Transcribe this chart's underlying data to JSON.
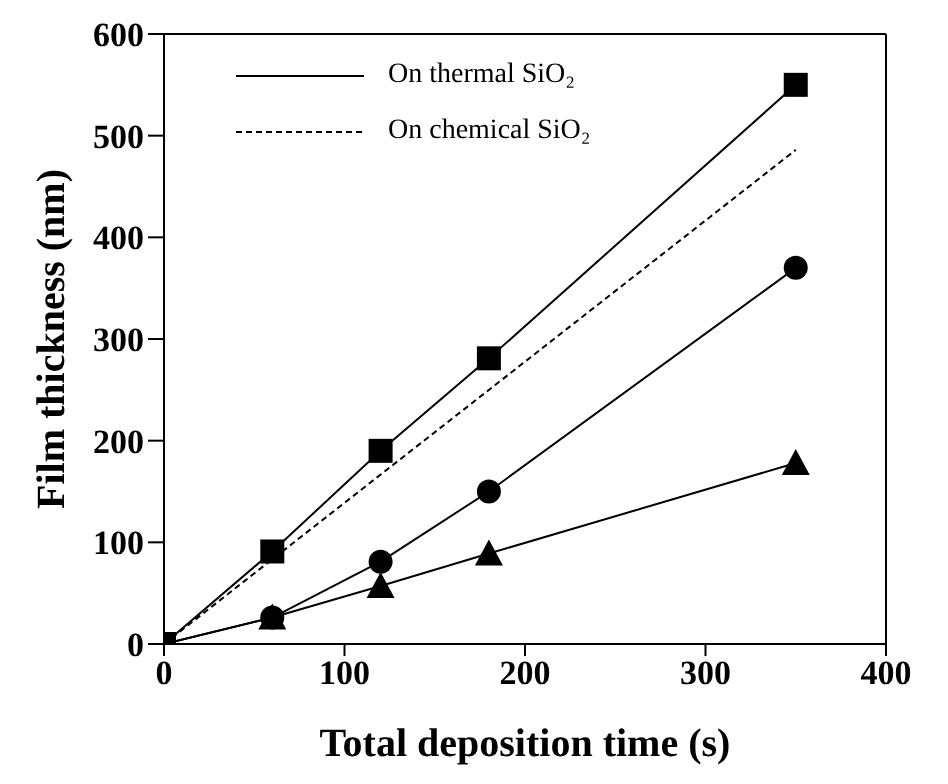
{
  "chart_data": {
    "type": "line",
    "xlabel": "Total deposition time (s)",
    "ylabel": "Film thickness (nm)",
    "xlim": [
      0,
      400
    ],
    "xticks": [
      0,
      100,
      200,
      300,
      400
    ],
    "ylim": [
      0,
      600
    ],
    "yticks": [
      0,
      100,
      200,
      300,
      400,
      500,
      600
    ],
    "legend": "top left",
    "series": [
      {
        "name": "On thermal SiO₂",
        "color": "#000000",
        "marker": "square",
        "line_style": "solid",
        "x": [
          0,
          60,
          120,
          180,
          350
        ],
        "values": [
          0,
          91,
          190,
          281,
          550
        ]
      },
      {
        "color": "#000000",
        "marker": "circle",
        "line_style": "solid",
        "x": [
          0,
          60,
          120,
          180,
          350
        ],
        "values": [
          0,
          26,
          81,
          150,
          370
        ]
      },
      {
        "color": "#000000",
        "marker": "triangle",
        "line_style": "solid",
        "x": [
          0,
          60,
          120,
          180,
          350
        ],
        "values": [
          0,
          26,
          57,
          89,
          178
        ]
      },
      {
        "name": "On chemical SiO₂",
        "color": "#000000",
        "marker": "none",
        "line_style": "dashed",
        "x": [
          0,
          350
        ],
        "values": [
          0,
          486
        ]
      }
    ]
  }
}
